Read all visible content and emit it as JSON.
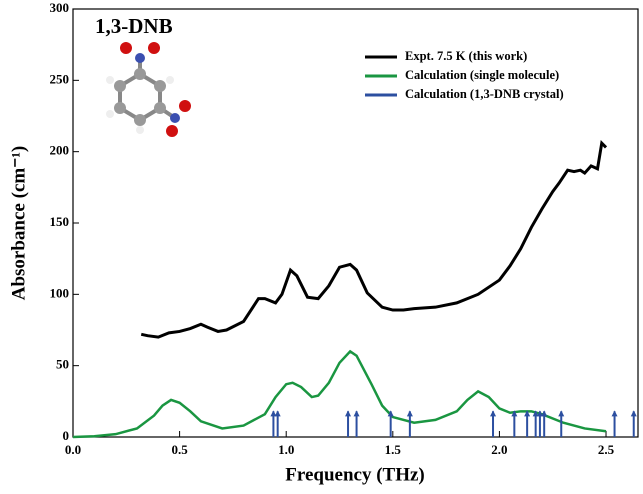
{
  "chart_data": {
    "type": "line",
    "annotation": "1,3-DNB",
    "x_label": "Frequency (THz)",
    "y_label": "Absorbance (cm⁻¹)",
    "xlim": [
      0,
      2.65
    ],
    "ylim": [
      0,
      300
    ],
    "xticks": [
      {
        "value": 0,
        "label": "0.0"
      },
      0.5,
      {
        "value": 1,
        "label": "1.0"
      },
      1.5,
      {
        "value": 2,
        "label": "2.0"
      },
      2.5
    ],
    "yticks": [
      0,
      50,
      100,
      150,
      200,
      250,
      300
    ],
    "series": [
      {
        "name": "Expt. 7.5 K (this work)",
        "color": "#000000",
        "style": "line",
        "x": [
          0.32,
          0.35,
          0.4,
          0.45,
          0.5,
          0.55,
          0.6,
          0.63,
          0.68,
          0.72,
          0.8,
          0.87,
          0.9,
          0.95,
          0.98,
          1.02,
          1.05,
          1.1,
          1.15,
          1.2,
          1.25,
          1.3,
          1.33,
          1.38,
          1.45,
          1.5,
          1.55,
          1.6,
          1.7,
          1.8,
          1.9,
          2.0,
          2.05,
          2.1,
          2.15,
          2.2,
          2.25,
          2.28,
          2.32,
          2.35,
          2.38,
          2.4,
          2.43,
          2.46,
          2.48,
          2.5
        ],
        "values": [
          72,
          71,
          70,
          73,
          74,
          76,
          79,
          77,
          74,
          75,
          81,
          97,
          97,
          94,
          100,
          117,
          113,
          98,
          97,
          106,
          119,
          121,
          117,
          101,
          91,
          89,
          89,
          90,
          91,
          94,
          100,
          110,
          120,
          132,
          147,
          160,
          172,
          178,
          187,
          186,
          187,
          185,
          190,
          188,
          206,
          203
        ]
      },
      {
        "name": "Calculation (single molecule)",
        "color": "#1a9641",
        "style": "line",
        "x": [
          0,
          0.1,
          0.2,
          0.3,
          0.38,
          0.42,
          0.46,
          0.5,
          0.55,
          0.6,
          0.7,
          0.8,
          0.9,
          0.95,
          1.0,
          1.03,
          1.07,
          1.12,
          1.15,
          1.2,
          1.25,
          1.3,
          1.33,
          1.4,
          1.45,
          1.5,
          1.6,
          1.7,
          1.8,
          1.85,
          1.9,
          1.95,
          2.0,
          2.05,
          2.1,
          2.15,
          2.2,
          2.3,
          2.4,
          2.5
        ],
        "values": [
          0,
          0.5,
          2,
          6,
          15,
          22,
          26,
          24,
          18,
          11,
          6,
          8,
          16,
          28,
          37,
          38,
          35,
          28,
          29,
          38,
          52,
          60,
          57,
          37,
          22,
          14,
          10,
          12,
          18,
          26,
          32,
          28,
          20,
          17,
          18,
          18,
          16,
          10,
          6,
          4
        ]
      },
      {
        "name": "Calculation (1,3-DNB crystal)",
        "color": "#2c4fa0",
        "style": "stem",
        "x": [
          0.94,
          0.96,
          1.29,
          1.33,
          1.49,
          1.58,
          1.97,
          2.07,
          2.13,
          2.17,
          2.19,
          2.21,
          2.29,
          2.54,
          2.63
        ],
        "values": [
          18,
          18,
          18,
          18,
          18,
          18,
          18,
          18,
          18,
          18,
          18,
          18,
          18,
          18,
          18
        ]
      }
    ]
  }
}
